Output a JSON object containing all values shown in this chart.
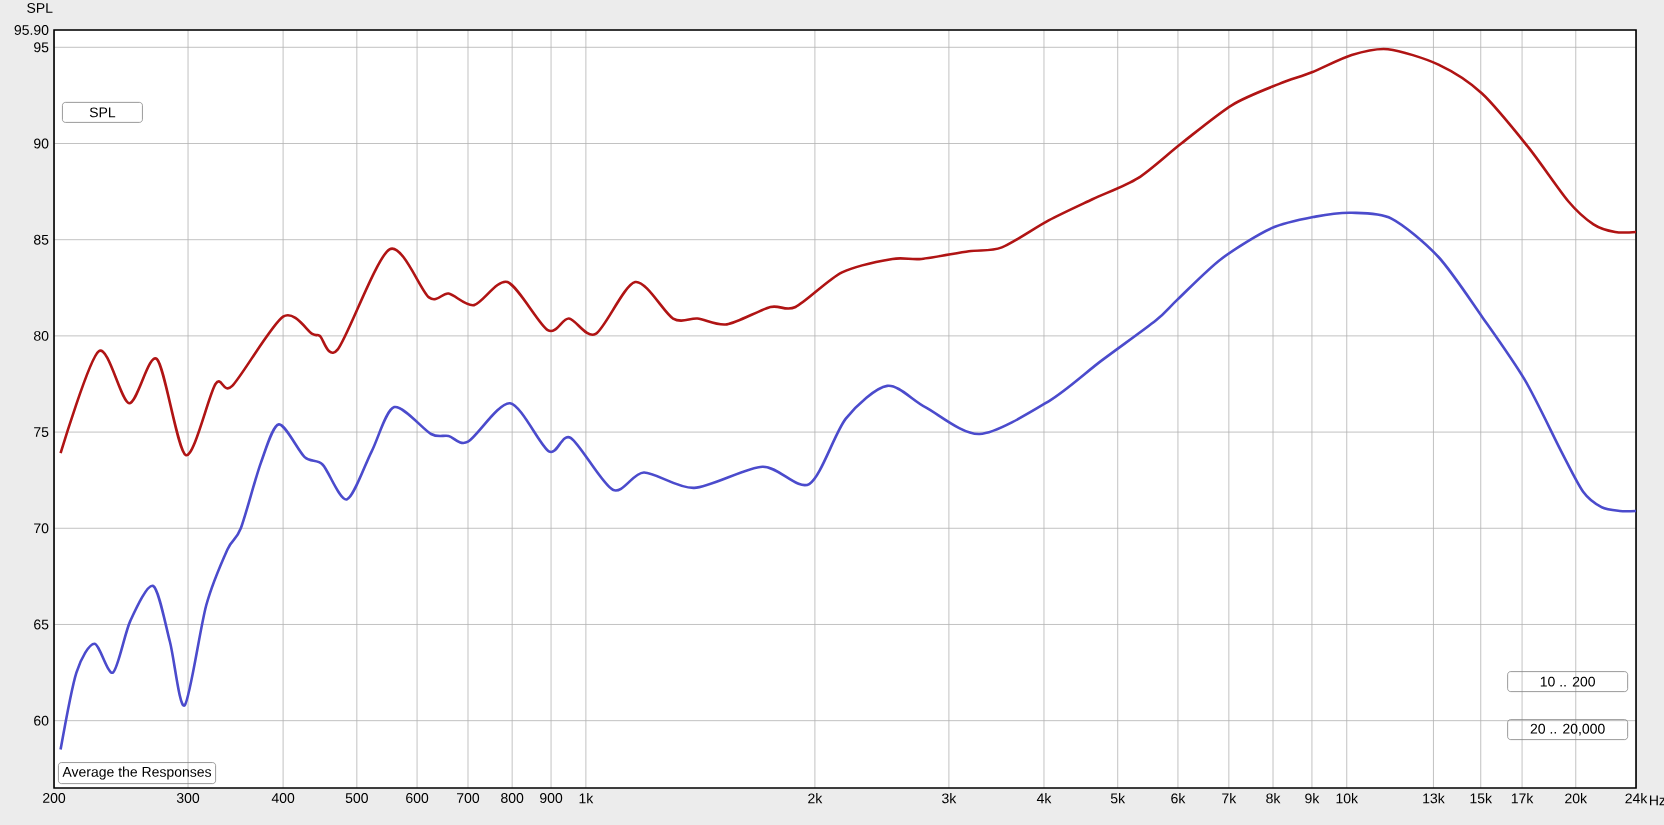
{
  "chart_data": {
    "type": "line",
    "ylabel": "SPL",
    "xlim": [
      200,
      24000
    ],
    "ylim": [
      56.5,
      95.9
    ],
    "log": "x",
    "xticks": [
      200,
      300,
      400,
      500,
      600,
      700,
      800,
      900,
      {
        "value": 1000,
        "label": "1k"
      },
      {
        "value": 2000,
        "label": "2k"
      },
      {
        "value": 3000,
        "label": "3k"
      },
      {
        "value": 4000,
        "label": "4k"
      },
      {
        "value": 5000,
        "label": "5k"
      },
      {
        "value": 6000,
        "label": "6k"
      },
      {
        "value": 7000,
        "label": "7k"
      },
      {
        "value": 8000,
        "label": "8k"
      },
      {
        "value": 9000,
        "label": "9k"
      },
      {
        "value": 10000,
        "label": "10k"
      },
      {
        "value": 13000,
        "label": "13k"
      },
      {
        "value": 15000,
        "label": "15k"
      },
      {
        "value": 17000,
        "label": "17k"
      },
      {
        "value": 20000,
        "label": "20k"
      },
      {
        "value": 24000,
        "label": "24k"
      }
    ],
    "xlabel": "Hz",
    "yticks": [
      60,
      65,
      70,
      75,
      80,
      85,
      90,
      95,
      {
        "value": 95.9,
        "label": "95.90"
      }
    ],
    "grid": true,
    "marker": "none",
    "line_style": "solid",
    "annotations": [
      "SPL",
      "Average the Responses",
      "10 .. 200",
      "20 .. 20,000"
    ],
    "series": [
      {
        "color": "#b01414",
        "x": [
          204,
          229,
          251,
          273,
          298,
          326,
          343,
          400,
          437,
          447,
          472,
          552,
          622,
          660,
          713,
          789,
          891,
          950,
          1030,
          1161,
          1302,
          1402,
          1532,
          1748,
          1886,
          2171,
          2529,
          2761,
          3187,
          3522,
          4057,
          4632,
          5317,
          6060,
          7068,
          8152,
          8999,
          10150,
          11330,
          13200,
          15060,
          17330,
          19550,
          21100,
          22530,
          24000
        ],
        "values": [
          73.9,
          79.2,
          76.5,
          78.8,
          73.8,
          77.5,
          77.4,
          81.0,
          80.1,
          80.0,
          79.3,
          84.5,
          82.0,
          82.2,
          81.6,
          82.8,
          80.3,
          80.9,
          80.1,
          82.8,
          80.9,
          80.9,
          80.6,
          81.5,
          81.5,
          83.3,
          84.0,
          84.0,
          84.4,
          84.6,
          86.0,
          87.1,
          88.2,
          90.0,
          92.0,
          93.1,
          93.7,
          94.6,
          94.9,
          94.1,
          92.6,
          89.8,
          87.0,
          85.8,
          85.4,
          85.4
        ]
      },
      {
        "color": "#4b4bcc",
        "x": [
          204,
          214,
          226,
          239,
          252,
          270,
          284,
          297,
          317,
          338,
          352,
          374,
          395,
          427,
          451,
          485,
          523,
          560,
          626,
          660,
          700,
          795,
          894,
          955,
          1085,
          1192,
          1388,
          1707,
          1966,
          2196,
          2489,
          2793,
          3292,
          4057,
          4756,
          5610,
          5995,
          6840,
          7966,
          9096,
          10150,
          11450,
          13200,
          15060,
          17150,
          19140,
          20450,
          21620,
          22850,
          24000
        ],
        "values": [
          58.5,
          62.5,
          64.0,
          62.5,
          65.2,
          67.0,
          64.1,
          60.8,
          66.0,
          68.9,
          70.0,
          73.4,
          75.4,
          73.7,
          73.3,
          71.5,
          74.0,
          76.3,
          74.9,
          74.8,
          74.5,
          76.5,
          74.0,
          74.7,
          72.0,
          72.9,
          72.1,
          73.2,
          72.3,
          75.7,
          77.4,
          76.3,
          74.9,
          76.6,
          78.7,
          80.8,
          81.9,
          84.0,
          85.6,
          86.2,
          86.4,
          86.1,
          84.1,
          81.0,
          77.7,
          74.0,
          71.9,
          71.1,
          70.9,
          70.9
        ]
      }
    ]
  }
}
